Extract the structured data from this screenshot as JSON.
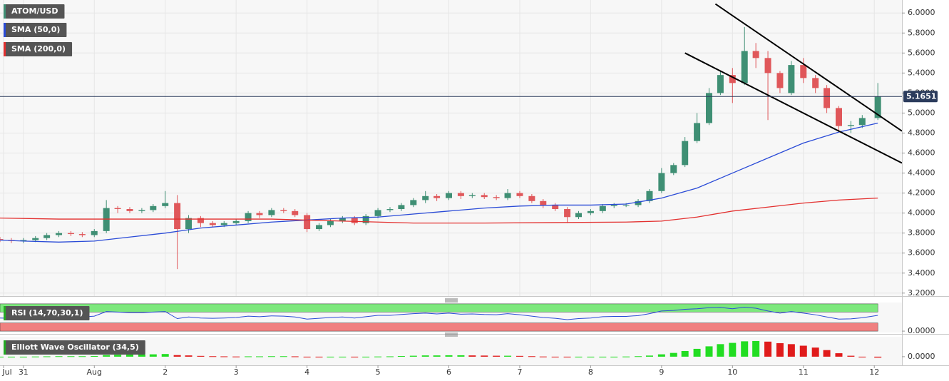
{
  "chart_data": {
    "type": "candlestick",
    "title": "ATOM/USD",
    "up_color": "#3f8f74",
    "down_color": "#e0575a",
    "grid": true,
    "xlim": [
      -0.33,
      12.39
    ],
    "xticks": [
      {
        "value": -0.28,
        "label": "Jul"
      },
      {
        "value": 0,
        "label": "31"
      },
      {
        "value": 1,
        "label": "Aug"
      },
      2,
      3,
      4,
      5,
      6,
      7,
      8,
      9,
      10,
      11,
      12
    ],
    "ylim": [
      3.17,
      6.13
    ],
    "yticks": [
      {
        "value": 3.2,
        "label": "3.2000"
      },
      {
        "value": 3.4,
        "label": "3.4000"
      },
      {
        "value": 3.6,
        "label": "3.6000"
      },
      {
        "value": 3.8,
        "label": "3.8000"
      },
      {
        "value": 4.0,
        "label": "4.0000"
      },
      {
        "value": 4.2,
        "label": "4.2000"
      },
      {
        "value": 4.4,
        "label": "4.4000"
      },
      {
        "value": 4.6,
        "label": "4.6000"
      },
      {
        "value": 4.8,
        "label": "4.8000"
      },
      {
        "value": 5.0,
        "label": "5.0000"
      },
      {
        "value": 5.2,
        "label": "5.2000"
      },
      {
        "value": 5.4,
        "label": "5.4000"
      },
      {
        "value": 5.6,
        "label": "5.6000"
      },
      {
        "value": 5.8,
        "label": "5.8000"
      },
      {
        "value": 6.0,
        "label": "6.0000"
      }
    ],
    "last_price": 5.1651,
    "last_price_color": "#2b3b5c",
    "x": [
      -0.33,
      -0.17,
      0,
      0.17,
      0.33,
      0.5,
      0.67,
      0.83,
      1,
      1.17,
      1.33,
      1.5,
      1.67,
      1.83,
      2,
      2.17,
      2.33,
      2.5,
      2.67,
      2.83,
      3,
      3.17,
      3.33,
      3.5,
      3.67,
      3.83,
      4,
      4.17,
      4.33,
      4.5,
      4.67,
      4.83,
      5,
      5.17,
      5.33,
      5.5,
      5.67,
      5.83,
      6,
      6.17,
      6.33,
      6.5,
      6.67,
      6.83,
      7,
      7.17,
      7.33,
      7.5,
      7.67,
      7.83,
      8,
      8.17,
      8.33,
      8.5,
      8.67,
      8.83,
      9,
      9.17,
      9.33,
      9.5,
      9.67,
      9.83,
      10,
      10.17,
      10.33,
      10.5,
      10.67,
      10.83,
      11,
      11.17,
      11.33,
      11.5,
      11.67,
      11.83,
      12.05
    ],
    "open": [
      3.74,
      3.73,
      3.72,
      3.73,
      3.75,
      3.78,
      3.8,
      3.79,
      3.78,
      3.82,
      4.05,
      4.04,
      4.02,
      4.03,
      4.07,
      4.1,
      3.84,
      3.95,
      3.9,
      3.88,
      3.9,
      3.92,
      4.0,
      3.98,
      4.03,
      4.02,
      3.98,
      3.84,
      3.88,
      3.92,
      3.95,
      3.9,
      3.97,
      4.03,
      4.04,
      4.08,
      4.13,
      4.17,
      4.15,
      4.2,
      4.17,
      4.18,
      4.16,
      4.15,
      4.2,
      4.17,
      4.12,
      4.08,
      4.04,
      3.96,
      4.0,
      4.02,
      4.07,
      4.08,
      4.08,
      4.12,
      4.22,
      4.4,
      4.48,
      4.72,
      4.9,
      5.2,
      5.38,
      5.3,
      5.62,
      5.55,
      5.4,
      5.2,
      5.48,
      5.35,
      5.25,
      5.05,
      4.87,
      4.88,
      4.95
    ],
    "high": [
      3.76,
      3.75,
      3.75,
      3.77,
      3.8,
      3.82,
      3.82,
      3.81,
      3.84,
      4.13,
      4.07,
      4.06,
      4.05,
      4.09,
      4.22,
      4.18,
      3.98,
      3.97,
      3.92,
      3.92,
      3.94,
      4.02,
      4.02,
      4.05,
      4.05,
      4.04,
      4.0,
      3.9,
      3.94,
      3.97,
      3.97,
      3.99,
      4.05,
      4.06,
      4.1,
      4.15,
      4.22,
      4.19,
      4.22,
      4.22,
      4.2,
      4.2,
      4.18,
      4.24,
      4.22,
      4.19,
      4.14,
      4.1,
      4.06,
      4.02,
      4.04,
      4.09,
      4.1,
      4.1,
      4.14,
      4.24,
      4.45,
      4.5,
      4.76,
      5.0,
      5.25,
      5.42,
      5.45,
      5.86,
      5.7,
      5.62,
      5.42,
      5.52,
      5.55,
      5.38,
      5.28,
      5.07,
      4.92,
      4.98,
      5.3
    ],
    "low": [
      3.71,
      3.7,
      3.7,
      3.71,
      3.73,
      3.76,
      3.77,
      3.76,
      3.76,
      3.8,
      4.0,
      4.0,
      4.0,
      4.01,
      4.05,
      3.44,
      3.8,
      3.86,
      3.86,
      3.86,
      3.88,
      3.9,
      3.95,
      3.96,
      4.0,
      3.96,
      3.81,
      3.82,
      3.86,
      3.9,
      3.88,
      3.88,
      3.95,
      4.01,
      4.02,
      4.06,
      4.1,
      4.12,
      4.13,
      4.14,
      4.15,
      4.14,
      4.13,
      4.13,
      4.15,
      4.1,
      4.05,
      4.02,
      3.9,
      3.94,
      3.98,
      4.0,
      4.05,
      4.06,
      4.06,
      4.1,
      4.2,
      4.38,
      4.46,
      4.7,
      4.88,
      5.18,
      5.1,
      5.28,
      5.45,
      4.93,
      5.2,
      5.18,
      5.3,
      5.2,
      5.0,
      4.82,
      4.8,
      4.85,
      4.93
    ],
    "close": [
      3.73,
      3.72,
      3.73,
      3.75,
      3.78,
      3.8,
      3.79,
      3.78,
      3.82,
      4.05,
      4.04,
      4.02,
      4.03,
      4.07,
      4.1,
      3.84,
      3.95,
      3.9,
      3.88,
      3.9,
      3.92,
      4.0,
      3.98,
      4.03,
      4.02,
      3.98,
      3.84,
      3.88,
      3.92,
      3.95,
      3.9,
      3.97,
      4.03,
      4.04,
      4.08,
      4.13,
      4.17,
      4.15,
      4.2,
      4.17,
      4.18,
      4.16,
      4.15,
      4.2,
      4.17,
      4.12,
      4.08,
      4.04,
      3.96,
      4.0,
      4.02,
      4.07,
      4.08,
      4.08,
      4.12,
      4.22,
      4.4,
      4.48,
      4.72,
      4.9,
      5.2,
      5.38,
      5.3,
      5.62,
      5.55,
      5.4,
      5.25,
      5.48,
      5.35,
      5.25,
      5.05,
      4.87,
      4.88,
      4.95,
      5.1651
    ],
    "overlays": [
      {
        "name": "SMA (50,0)",
        "color": "#2a4bd7",
        "x": [
          -0.33,
          0,
          0.5,
          1,
          1.5,
          2,
          2.5,
          3,
          3.5,
          4,
          4.5,
          5,
          5.5,
          6,
          6.5,
          7,
          7.5,
          8,
          8.5,
          9,
          9.5,
          10,
          10.5,
          11,
          11.5,
          12.05
        ],
        "values": [
          3.73,
          3.72,
          3.71,
          3.72,
          3.76,
          3.8,
          3.85,
          3.88,
          3.91,
          3.93,
          3.95,
          3.96,
          3.99,
          4.02,
          4.05,
          4.07,
          4.08,
          4.08,
          4.09,
          4.15,
          4.25,
          4.4,
          4.55,
          4.7,
          4.81,
          4.9
        ]
      },
      {
        "name": "SMA (200,0)",
        "color": "#e3302f",
        "x": [
          -0.33,
          0.5,
          1.5,
          2.5,
          3.5,
          4.5,
          5.5,
          6.5,
          7.5,
          8.5,
          9,
          9.5,
          10,
          10.5,
          11,
          11.5,
          12.05
        ],
        "values": [
          3.95,
          3.94,
          3.94,
          3.94,
          3.94,
          3.92,
          3.9,
          3.9,
          3.905,
          3.91,
          3.92,
          3.96,
          4.02,
          4.06,
          4.1,
          4.13,
          4.15
        ]
      }
    ],
    "trendlines": [
      {
        "color": "#000000",
        "x": [
          9.76,
          12.39
        ],
        "y": [
          6.09,
          4.82
        ]
      },
      {
        "color": "#000000",
        "x": [
          9.33,
          12.39
        ],
        "y": [
          5.6,
          4.5
        ]
      }
    ],
    "indicators": [
      {
        "type": "line",
        "name": "RSI (14,70,30,1)",
        "color": "#2a4bd7",
        "ylim": [
          -5,
          105
        ],
        "yticks": [
          {
            "value": 0,
            "label": "0.0000"
          }
        ],
        "bands": [
          {
            "from": 70,
            "to": 100,
            "color": "#7de87d"
          },
          {
            "from": 0,
            "to": 30,
            "color": "#f08080"
          }
        ],
        "values": [
          48,
          47,
          48,
          50,
          52,
          54,
          53,
          52,
          55,
          72,
          70,
          68,
          68,
          70,
          72,
          46,
          52,
          48,
          47,
          48,
          50,
          55,
          53,
          56,
          55,
          52,
          44,
          47,
          50,
          52,
          48,
          53,
          58,
          58,
          61,
          64,
          66,
          63,
          66,
          62,
          63,
          61,
          60,
          64,
          60,
          55,
          50,
          47,
          42,
          46,
          48,
          53,
          54,
          54,
          57,
          64,
          74,
          76,
          80,
          82,
          86,
          87,
          82,
          88,
          84,
          74,
          66,
          72,
          66,
          60,
          52,
          44,
          45,
          49,
          58
        ]
      },
      {
        "type": "bar",
        "name": "Elliott Wave Oscillator (34,5)",
        "up_color": "#22dd22",
        "down_color": "#e01b1b",
        "ylim": [
          -0.55,
          1.27
        ],
        "yticks": [
          {
            "value": 0,
            "label": "0.0000"
          }
        ],
        "values": [
          0,
          0,
          0,
          0.01,
          0.02,
          0.03,
          0.03,
          0.03,
          0.04,
          0.1,
          0.12,
          0.13,
          0.14,
          0.15,
          0.17,
          0.1,
          0.08,
          0.05,
          0.03,
          0.02,
          0.01,
          0.02,
          0.02,
          0.03,
          0.03,
          0.02,
          -0.02,
          -0.03,
          -0.02,
          -0.01,
          -0.02,
          -0.01,
          0.01,
          0.02,
          0.04,
          0.06,
          0.08,
          0.08,
          0.09,
          0.09,
          0.08,
          0.07,
          0.06,
          0.06,
          0.05,
          0.03,
          0.01,
          -0.01,
          -0.04,
          -0.04,
          -0.03,
          -0.01,
          0,
          0.01,
          0.03,
          0.07,
          0.15,
          0.24,
          0.36,
          0.5,
          0.66,
          0.8,
          0.88,
          0.98,
          1.0,
          0.96,
          0.86,
          0.8,
          0.7,
          0.58,
          0.42,
          0.22,
          0.06,
          -0.04,
          -0.06
        ]
      }
    ]
  }
}
